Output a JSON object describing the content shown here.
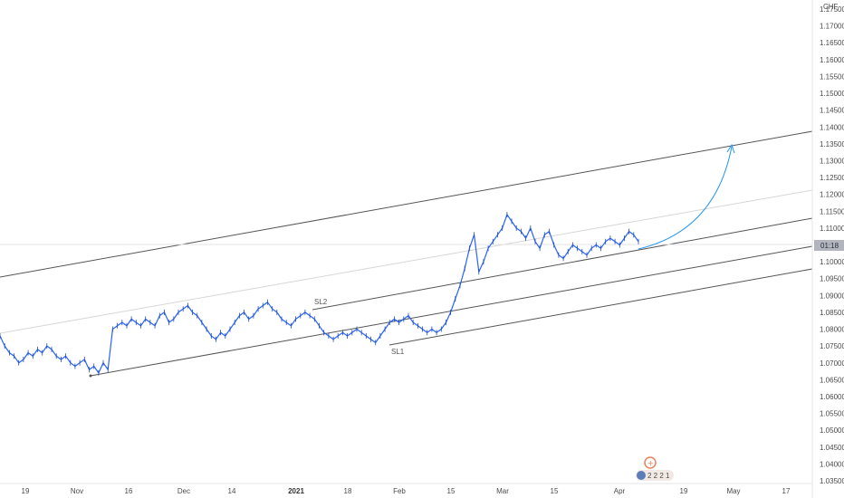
{
  "header": {
    "currency": "CHF"
  },
  "chart_data": {
    "type": "line",
    "title": "",
    "ylim": [
      1.035,
      1.18
    ],
    "y_ticks": [
      "1.17500",
      "1.17000",
      "1.16500",
      "1.16000",
      "1.15500",
      "1.15000",
      "1.14500",
      "1.14000",
      "1.13500",
      "1.13000",
      "1.12500",
      "1.12000",
      "1.11500",
      "1.11000",
      "1.10500",
      "1.10000",
      "1.09500",
      "1.09000",
      "1.08500",
      "1.08000",
      "1.07500",
      "1.07000",
      "1.06500",
      "1.06000",
      "1.05500",
      "1.05000",
      "1.04500",
      "1.04000",
      "1.03500"
    ],
    "x_ticks": [
      "19",
      "Nov",
      "16",
      "Dec",
      "14",
      "2021",
      "18",
      "Feb",
      "15",
      "Mar",
      "15",
      "Apr",
      "19",
      "May",
      "17"
    ],
    "price_tag": "01:18",
    "series": [
      {
        "values": [
          1.078,
          1.075,
          1.073,
          1.072,
          1.07,
          1.071,
          1.073,
          1.072,
          1.074,
          1.073,
          1.075,
          1.074,
          1.072,
          1.071,
          1.072,
          1.07,
          1.069,
          1.07,
          1.071,
          1.068,
          1.069,
          1.067,
          1.07,
          1.068,
          1.08,
          1.081,
          1.082,
          1.081,
          1.083,
          1.082,
          1.081,
          1.083,
          1.082,
          1.081,
          1.084,
          1.085,
          1.082,
          1.083,
          1.085,
          1.086,
          1.087,
          1.085,
          1.084,
          1.082,
          1.08,
          1.078,
          1.077,
          1.079,
          1.078,
          1.08,
          1.082,
          1.084,
          1.085,
          1.083,
          1.084,
          1.086,
          1.087,
          1.088,
          1.086,
          1.085,
          1.083,
          1.082,
          1.081,
          1.083,
          1.084,
          1.085,
          1.084,
          1.083,
          1.081,
          1.079,
          1.078,
          1.077,
          1.078,
          1.079,
          1.078,
          1.079,
          1.08,
          1.079,
          1.078,
          1.077,
          1.076,
          1.078,
          1.08,
          1.082,
          1.083,
          1.082,
          1.083,
          1.084,
          1.082,
          1.081,
          1.08,
          1.079,
          1.08,
          1.079,
          1.08,
          1.082,
          1.085,
          1.089,
          1.093,
          1.098,
          1.104,
          1.108,
          1.097,
          1.1,
          1.104,
          1.106,
          1.108,
          1.11,
          1.114,
          1.112,
          1.11,
          1.109,
          1.107,
          1.11,
          1.106,
          1.104,
          1.108,
          1.109,
          1.105,
          1.102,
          1.101,
          1.103,
          1.105,
          1.104,
          1.103,
          1.102,
          1.104,
          1.105,
          1.104,
          1.106,
          1.107,
          1.106,
          1.105,
          1.107,
          1.109,
          1.108,
          1.106
        ]
      }
    ],
    "annotations": [
      {
        "text": "SL2"
      },
      {
        "text": "SL1"
      }
    ],
    "channel_lines": 4,
    "grid": false,
    "legend": "none"
  },
  "badge": {
    "text": "2 2 2 1"
  }
}
